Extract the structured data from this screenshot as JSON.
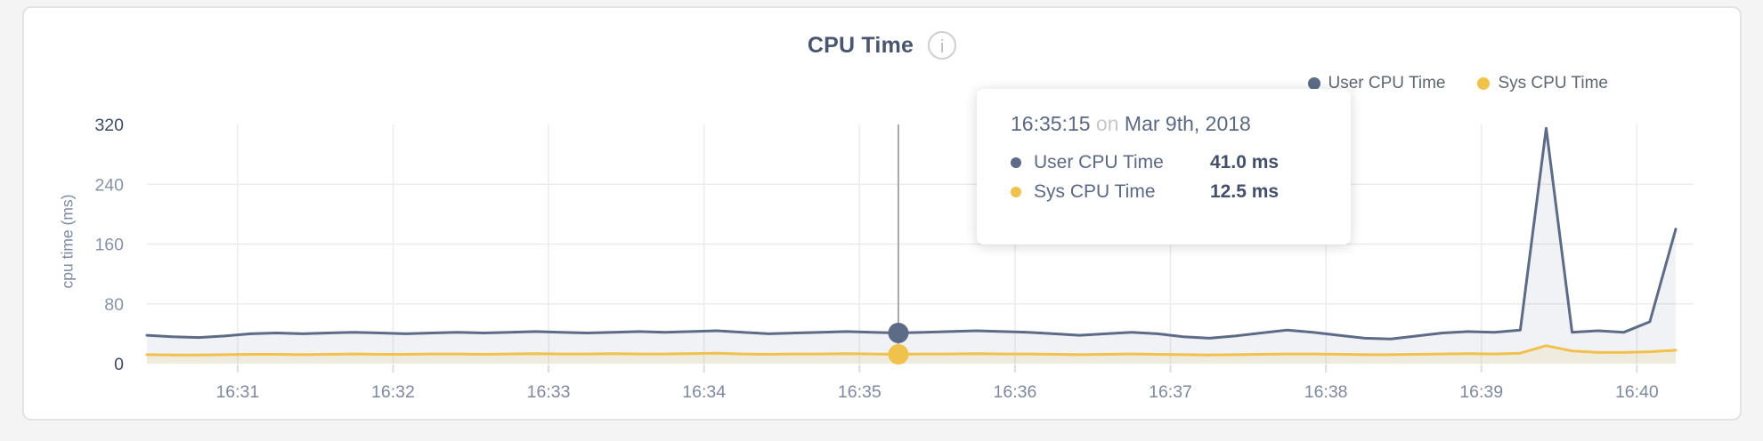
{
  "header": {
    "title": "CPU Time",
    "info_glyph": "i"
  },
  "legend": {
    "items": [
      {
        "label": "User CPU Time",
        "color": "#5d6b87"
      },
      {
        "label": "Sys CPU Time",
        "color": "#f0c14b"
      }
    ]
  },
  "tooltip": {
    "time": "16:35:15",
    "conj": "on",
    "date": "Mar 9th, 2018",
    "rows": [
      {
        "label": "User CPU Time",
        "value": "41.0 ms",
        "color": "#5d6b87"
      },
      {
        "label": "Sys CPU Time",
        "value": "12.5 ms",
        "color": "#f0c14b"
      }
    ]
  },
  "chart_data": {
    "type": "area",
    "title": "CPU Time",
    "ylabel": "cpu time (ms)",
    "ylim": [
      0,
      320
    ],
    "y_ticks": [
      0,
      80,
      160,
      240,
      320
    ],
    "x_ticks": [
      "16:31",
      "16:32",
      "16:33",
      "16:34",
      "16:35",
      "16:36",
      "16:37",
      "16:38",
      "16:39",
      "16:40"
    ],
    "start_time": "16:30:25",
    "interval_seconds": 10,
    "grid": true,
    "legend_position": "top-right",
    "highlight_index": 29,
    "highlight_time": "16:35:15",
    "series": [
      {
        "name": "User CPU Time",
        "color": "#5d6b87",
        "unit": "ms",
        "values": [
          38,
          36,
          35,
          37,
          40,
          41,
          40,
          41,
          42,
          41,
          40,
          41,
          42,
          41,
          42,
          43,
          42,
          41,
          42,
          43,
          42,
          43,
          44,
          42,
          40,
          41,
          42,
          43,
          42,
          41,
          42,
          43,
          44,
          43,
          42,
          40,
          38,
          40,
          42,
          40,
          36,
          34,
          37,
          41,
          45,
          42,
          38,
          34,
          33,
          37,
          41,
          43,
          42,
          45,
          315,
          42,
          44,
          42,
          56,
          180
        ]
      },
      {
        "name": "Sys CPU Time",
        "color": "#f0c14b",
        "unit": "ms",
        "values": [
          12,
          11.5,
          11.5,
          12,
          12.5,
          12.5,
          12,
          12.5,
          13,
          12.5,
          12.5,
          13,
          13,
          12.5,
          13,
          13.5,
          13,
          13,
          13.5,
          13,
          13,
          13.5,
          14,
          13,
          12.5,
          13,
          13,
          13.5,
          13,
          12.5,
          13,
          13,
          13.5,
          13,
          13,
          12.5,
          12,
          12.5,
          13,
          12.5,
          12,
          11.5,
          12,
          12.5,
          13,
          13,
          12.5,
          12,
          12,
          12.5,
          13,
          13.5,
          13,
          14,
          24,
          17,
          15,
          15,
          16,
          18
        ]
      }
    ]
  },
  "colors": {
    "axis_label": "#7e89a0",
    "axis_label_strong": "#3e4a64",
    "axis_label_mid": "#8a93a6",
    "gridline": "#ececec",
    "cursor_line": "#a8a8a8",
    "user_area": "rgba(99,113,140,0.09)",
    "sys_area": "rgba(240,193,75,0.13)",
    "card_border": "#e3e3e3",
    "page_bg": "#f4f4f5"
  }
}
